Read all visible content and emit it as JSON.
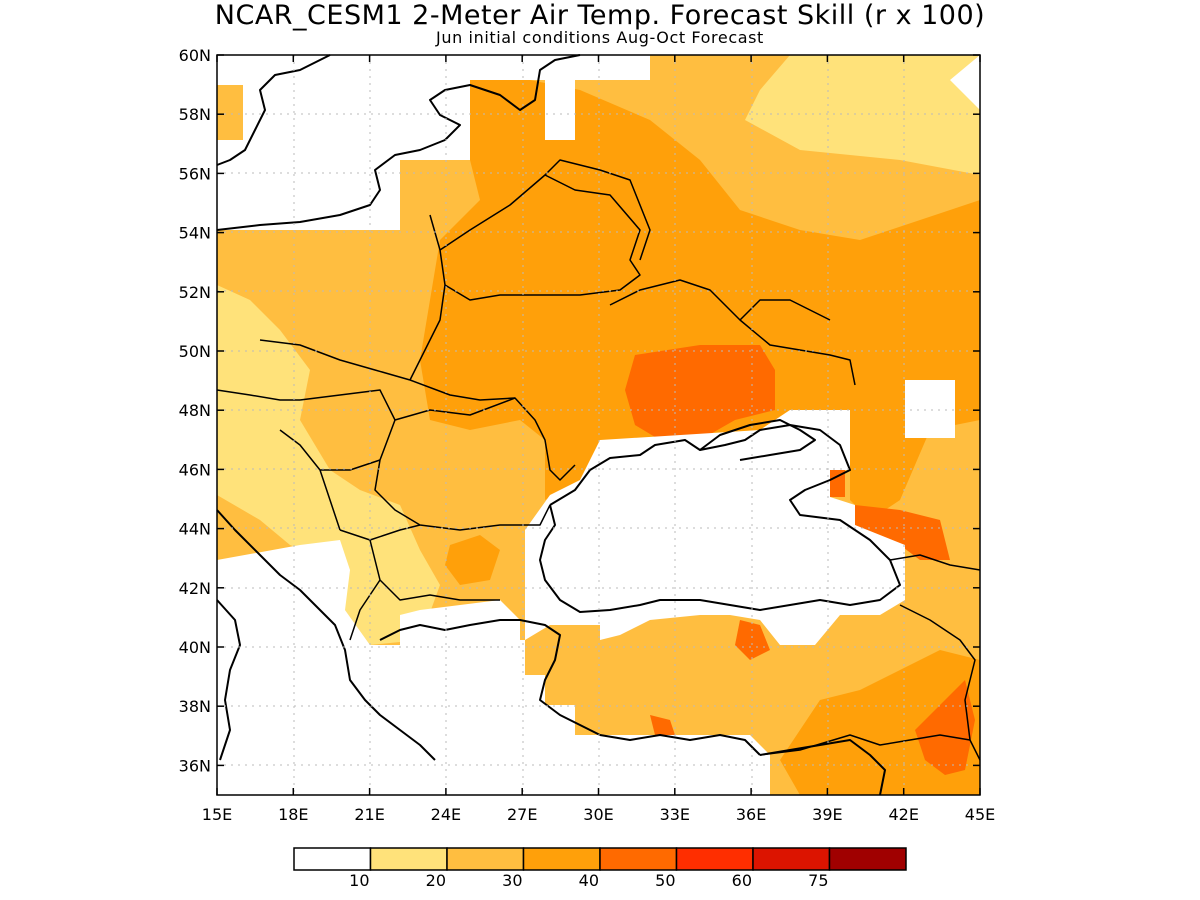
{
  "header": {
    "title": "NCAR_CESM1 2-Meter Air Temp. Forecast Skill (r x 100)",
    "subtitle": "Jun initial conditions  Aug-Oct Forecast"
  },
  "axes": {
    "lon_labels": [
      "15E",
      "18E",
      "21E",
      "24E",
      "27E",
      "30E",
      "33E",
      "36E",
      "39E",
      "42E",
      "45E"
    ],
    "lat_labels": [
      "60N",
      "58N",
      "56N",
      "54N",
      "52N",
      "50N",
      "48N",
      "46N",
      "44N",
      "42N",
      "40N",
      "38N",
      "36N"
    ],
    "lon_range": [
      15,
      45
    ],
    "lat_range": [
      35,
      60
    ]
  },
  "colorbar": {
    "thresholds": [
      "10",
      "20",
      "30",
      "40",
      "50",
      "60",
      "75"
    ],
    "colors": [
      "#ffffff",
      "#ffe27a",
      "#ffbe40",
      "#ffa00a",
      "#ff6a00",
      "#ff2e00",
      "#dc1400",
      "#a00000"
    ]
  },
  "map_colors": {
    "none": "#ffffff",
    "c10_20": "#ffe27a",
    "c20_30": "#ffbe40",
    "c30_40": "#ffa00a",
    "c40_50": "#ff6a00"
  }
}
